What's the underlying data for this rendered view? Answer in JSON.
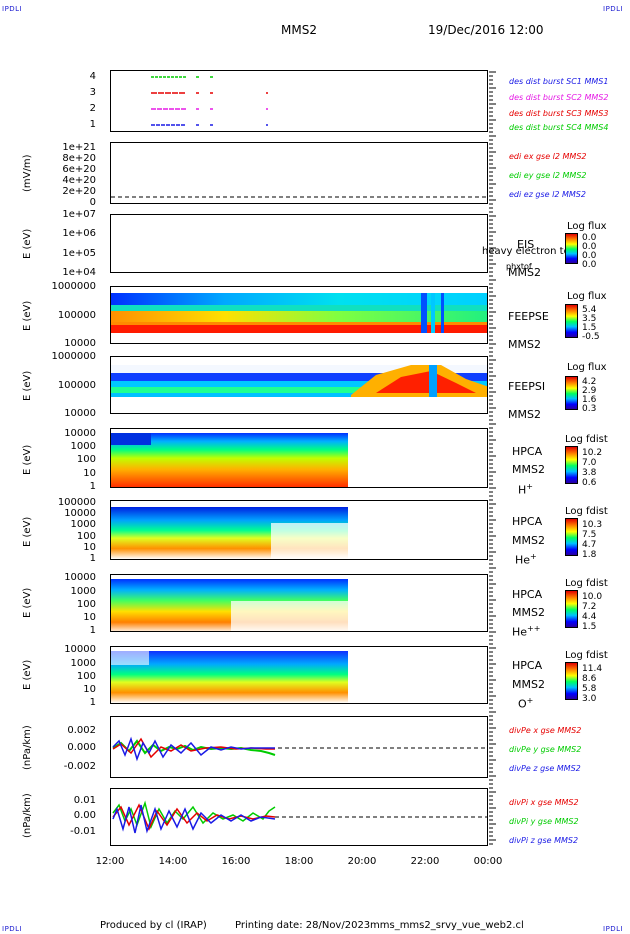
{
  "corner_label": "IPDLI",
  "header": {
    "spacecraft": "MMS2",
    "datetime": "19/Dec/2016 12:00"
  },
  "footer": {
    "produced": "Produced by cl (IRAP)",
    "printing": "Printing date: 28/Nov/2023",
    "file": "mms_mms2_srvy_vue_web2.cl"
  },
  "chart_data": {
    "type": "multi-panel timeseries",
    "x_ticks": [
      "12:00",
      "14:00",
      "16:00",
      "18:00",
      "20:00",
      "22:00",
      "00:00"
    ],
    "panels": [
      {
        "id": "des-dist-burst",
        "y_ticks": [
          "4",
          "3",
          "2",
          "1"
        ],
        "legend": [
          {
            "label": "des dist burst SC1 MMS1",
            "color": "#1a1ae6"
          },
          {
            "label": "des dist burst SC2 MMS2",
            "color": "#e61ae6"
          },
          {
            "label": "des dist burst SC3 MMS3",
            "color": "#e60000"
          },
          {
            "label": "des dist burst SC4 MMS4",
            "color": "#00cc00"
          }
        ]
      },
      {
        "id": "edi",
        "ylabel": "(mV/m)",
        "y_ticks": [
          "1e+21",
          "8e+20",
          "6e+20",
          "4e+20",
          "2e+20",
          "0"
        ],
        "legend": [
          {
            "label": "edi ex gse l2 MMS2",
            "color": "#e60000"
          },
          {
            "label": "edi ey gse l2 MMS2",
            "color": "#00cc00"
          },
          {
            "label": "edi ez gse l2 MMS2",
            "color": "#1a1ae6"
          }
        ]
      },
      {
        "id": "eis",
        "ylabel": "E (eV)",
        "y_ticks": [
          "1e+07",
          "1e+06",
          "1e+05",
          "1e+04"
        ],
        "instrument": [
          "EIS",
          "MMS2"
        ],
        "extra_label": "phxtof",
        "overlap_label": "heavy electron tof",
        "colorbar": {
          "title": "Log flux",
          "values": [
            "0.0",
            "0.0",
            "0.0",
            "0.0"
          ]
        }
      },
      {
        "id": "feepse",
        "ylabel": "E (eV)",
        "y_ticks": [
          "1000000",
          "100000",
          "10000"
        ],
        "instrument": [
          "FEEPSE",
          "MMS2"
        ],
        "colorbar": {
          "title": "Log flux",
          "values": [
            "5.4",
            "3.5",
            "1.5",
            "-0.5"
          ]
        }
      },
      {
        "id": "feepsi",
        "ylabel": "E (eV)",
        "y_ticks": [
          "1000000",
          "100000",
          "10000"
        ],
        "instrument": [
          "FEEPSI",
          "MMS2"
        ],
        "colorbar": {
          "title": "Log flux",
          "values": [
            "4.2",
            "2.9",
            "1.6",
            "0.3"
          ]
        }
      },
      {
        "id": "hpca-h",
        "ylabel": "E (eV)",
        "y_ticks": [
          "10000",
          "1000",
          "100",
          "10",
          "1"
        ],
        "instrument": [
          "HPCA",
          "MMS2"
        ],
        "species": "H",
        "charge": "+",
        "colorbar": {
          "title": "Log fdist",
          "values": [
            "10.2",
            "7.0",
            "3.8",
            "0.6"
          ]
        }
      },
      {
        "id": "hpca-he",
        "ylabel": "E (eV)",
        "y_ticks": [
          "100000",
          "10000",
          "1000",
          "100",
          "10",
          "1"
        ],
        "instrument": [
          "HPCA",
          "MMS2"
        ],
        "species": "He",
        "charge": "+",
        "colorbar": {
          "title": "Log fdist",
          "values": [
            "10.3",
            "7.5",
            "4.7",
            "1.8"
          ]
        }
      },
      {
        "id": "hpca-hepp",
        "ylabel": "E (eV)",
        "y_ticks": [
          "10000",
          "1000",
          "100",
          "10",
          "1"
        ],
        "instrument": [
          "HPCA",
          "MMS2"
        ],
        "species": "He",
        "charge": "++",
        "colorbar": {
          "title": "Log fdist",
          "values": [
            "10.0",
            "7.2",
            "4.4",
            "1.5"
          ]
        }
      },
      {
        "id": "hpca-o",
        "ylabel": "E (eV)",
        "y_ticks": [
          "10000",
          "1000",
          "100",
          "10",
          "1"
        ],
        "instrument": [
          "HPCA",
          "MMS2"
        ],
        "species": "O",
        "charge": "+",
        "colorbar": {
          "title": "Log fdist",
          "values": [
            "11.4",
            "8.6",
            "5.8",
            "3.0"
          ]
        }
      },
      {
        "id": "divpe",
        "ylabel": "(nPa/km)",
        "y_ticks": [
          "0.002",
          "0.000",
          "-0.002"
        ],
        "legend": [
          {
            "label": "divPe x gse MMS2",
            "color": "#e60000"
          },
          {
            "label": "divPe y gse MMS2",
            "color": "#00cc00"
          },
          {
            "label": "divPe z gse MMS2",
            "color": "#1a1ae6"
          }
        ]
      },
      {
        "id": "divpi",
        "ylabel": "(nPa/km)",
        "y_ticks": [
          "0.01",
          "0.00",
          "-0.01"
        ],
        "legend": [
          {
            "label": "divPi x gse MMS2",
            "color": "#e60000"
          },
          {
            "label": "divPi y gse MMS2",
            "color": "#00cc00"
          },
          {
            "label": "divPi z gse MMS2",
            "color": "#1a1ae6"
          }
        ]
      }
    ]
  }
}
